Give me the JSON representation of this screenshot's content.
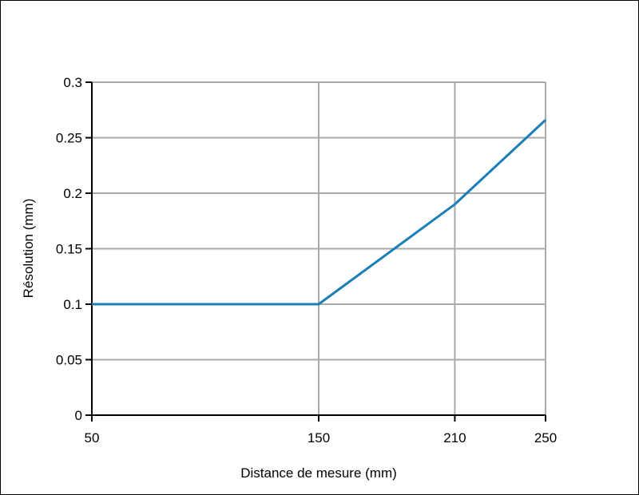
{
  "chart_data": {
    "type": "line",
    "title": "",
    "xlabel": "Distance de mesure (mm)",
    "ylabel": "Résolution (mm)",
    "xlim": [
      50,
      250
    ],
    "ylim": [
      0,
      0.3
    ],
    "x_ticks": [
      50,
      150,
      210,
      250
    ],
    "x_tick_labels": [
      "50",
      "150",
      "210",
      "250"
    ],
    "y_ticks": [
      0,
      0.05,
      0.1,
      0.15,
      0.2,
      0.25,
      0.3
    ],
    "y_tick_labels": [
      "0",
      "0.05",
      "0.1",
      "0.15",
      "0.2",
      "0.25",
      "0.3"
    ],
    "grid": true,
    "series": [
      {
        "x": [
          50,
          150,
          210,
          250
        ],
        "y": [
          0.1,
          0.1,
          0.19,
          0.266
        ],
        "color": "#1a7fb5"
      }
    ]
  }
}
